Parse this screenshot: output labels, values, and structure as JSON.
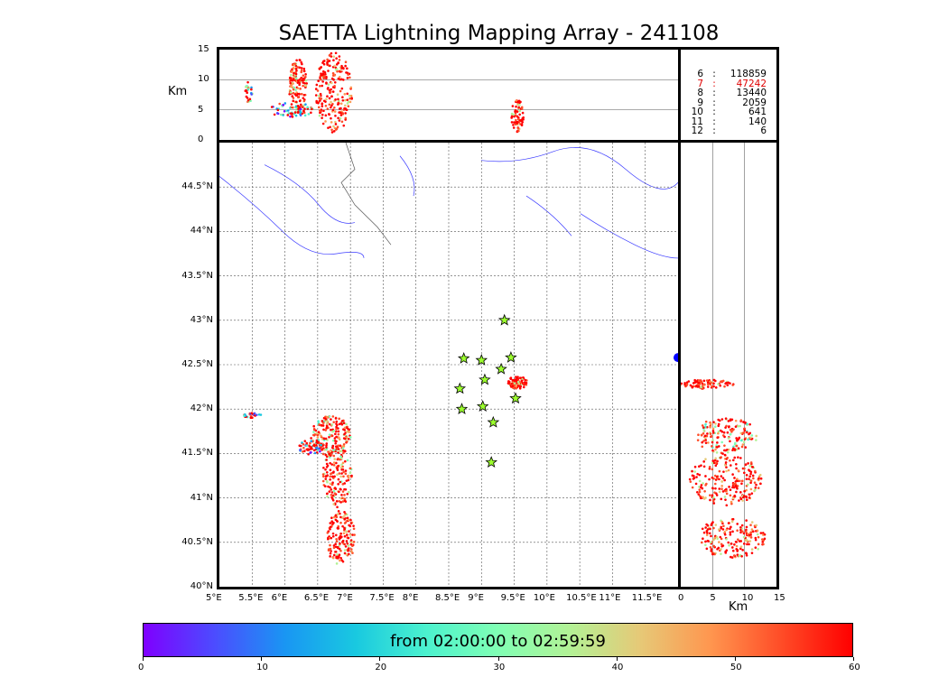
{
  "title": "SAETTA Lightning Mapping Array - 241108",
  "altitude_panel": {
    "ylabel": "Km",
    "yticks": [
      "15",
      "10",
      "5",
      "0"
    ]
  },
  "side_panel": {
    "xlabel": "Km",
    "xticks": [
      "0",
      "5",
      "10",
      "15"
    ]
  },
  "stats": [
    {
      "level": "6",
      "sep": ":",
      "count": "118859",
      "highlight": false
    },
    {
      "level": "7",
      "sep": ":",
      "count": "47242",
      "highlight": true
    },
    {
      "level": "8",
      "sep": ":",
      "count": "13440",
      "highlight": false
    },
    {
      "level": "9",
      "sep": ":",
      "count": "2059",
      "highlight": false
    },
    {
      "level": "10",
      "sep": ":",
      "count": "641",
      "highlight": false
    },
    {
      "level": "11",
      "sep": ":",
      "count": "140",
      "highlight": false
    },
    {
      "level": "12",
      "sep": ":",
      "count": "6",
      "highlight": false
    }
  ],
  "map": {
    "lon_ticks": [
      "5°E",
      "5.5°E",
      "6°E",
      "6.5°E",
      "7°E",
      "7.5°E",
      "8°E",
      "8.5°E",
      "9°E",
      "9.5°E",
      "10°E",
      "10.5°E",
      "11°E",
      "11.5°E"
    ],
    "lat_ticks": [
      "44.5°N",
      "44°N",
      "43.5°N",
      "43°N",
      "42.5°N",
      "42°N",
      "41.5°N",
      "41°N",
      "40.5°N",
      "40°N"
    ],
    "sea_color": "#b8eefc",
    "land_color": "#ffffff",
    "river_color": "#3b3bff",
    "station_color": "#9cff2e",
    "station_marker": "star-icon"
  },
  "colorbar": {
    "label": "from 02:00:00 to 02:59:59",
    "ticks": [
      "0",
      "10",
      "20",
      "30",
      "40",
      "50",
      "60"
    ],
    "colormap": "rainbow"
  }
}
